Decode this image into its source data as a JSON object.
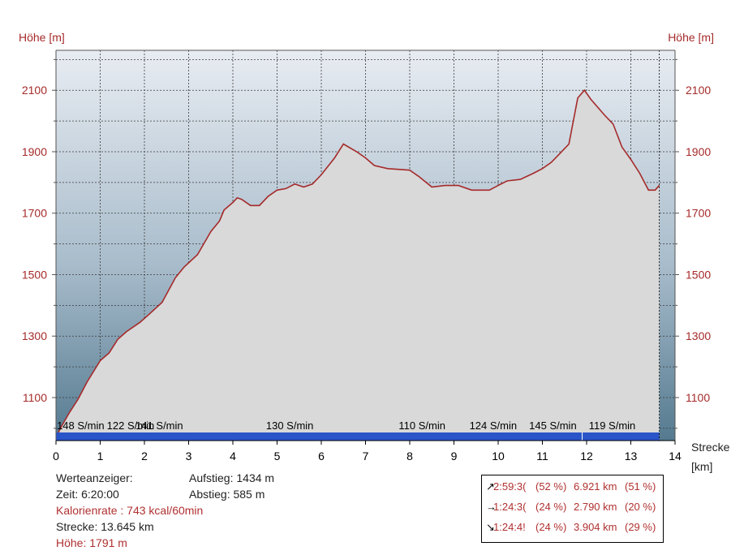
{
  "chart_data": {
    "type": "area",
    "ylabel_left": "Höhe [m]",
    "ylabel_right": "Höhe [m]",
    "xlabel": "Strecke",
    "xunit": "[km]",
    "xlim": [
      0,
      14
    ],
    "ylim": [
      960,
      2230
    ],
    "xticks": [
      0,
      1,
      2,
      3,
      4,
      5,
      6,
      7,
      8,
      9,
      10,
      11,
      12,
      13,
      14
    ],
    "yticks": [
      1100,
      1300,
      1500,
      1700,
      1900,
      2100
    ],
    "grid": true,
    "colors": {
      "line": "#a52a2a",
      "fill": "#d9d9d9",
      "bg_top": "#e6eaf0",
      "bg_bottom": "#5a7d92",
      "bar": "#2a55c8",
      "text_axis": "#a52a2a"
    },
    "series": [
      {
        "x": [
          0,
          0.1,
          0.3,
          0.5,
          0.7,
          1.0,
          1.2,
          1.4,
          1.6,
          1.9,
          2.1,
          2.4,
          2.7,
          2.9,
          3.2,
          3.5,
          3.7,
          3.8,
          4.0,
          4.1,
          4.2,
          4.4,
          4.6,
          4.8,
          5.0,
          5.2,
          5.4,
          5.6,
          5.8,
          6.0,
          6.3,
          6.5,
          6.8,
          7.0,
          7.2,
          7.5,
          8.0,
          8.2,
          8.5,
          8.8,
          9.1,
          9.4,
          9.8,
          10.0,
          10.2,
          10.5,
          10.8,
          11.0,
          11.2,
          11.4,
          11.6,
          11.8,
          11.95,
          12.1,
          12.4,
          12.6,
          12.8,
          13.0,
          13.2,
          13.4,
          13.55,
          13.645
        ],
        "y": [
          970,
          1000,
          1050,
          1095,
          1150,
          1220,
          1245,
          1290,
          1315,
          1345,
          1370,
          1410,
          1490,
          1525,
          1565,
          1640,
          1675,
          1710,
          1735,
          1750,
          1745,
          1725,
          1725,
          1755,
          1775,
          1780,
          1795,
          1785,
          1795,
          1825,
          1880,
          1925,
          1900,
          1880,
          1855,
          1845,
          1840,
          1820,
          1785,
          1790,
          1790,
          1775,
          1775,
          1790,
          1805,
          1810,
          1830,
          1845,
          1865,
          1895,
          1925,
          2075,
          2100,
          2070,
          2020,
          1990,
          1915,
          1875,
          1830,
          1775,
          1775,
          1791
        ]
      }
    ],
    "cadence_labels": [
      {
        "x": 0.02,
        "label": "148 S/min"
      },
      {
        "x": 1.15,
        "label": "122 S/min"
      },
      {
        "x": 1.8,
        "label": "141 S/min"
      },
      {
        "x": 4.75,
        "label": "130 S/min"
      },
      {
        "x": 7.75,
        "label": "110 S/min"
      },
      {
        "x": 9.35,
        "label": "124 S/min"
      },
      {
        "x": 10.7,
        "label": "145 S/min"
      },
      {
        "x": 12.05,
        "label": "119 S/min"
      }
    ],
    "marker_x": 13.645
  },
  "info": {
    "werteanzeiger": "Werteanzeiger:",
    "zeit": "Zeit: 6:20:00",
    "kalorienrate": "Kalorienrate : 743 kcal/60min",
    "strecke": "Strecke: 13.645 km",
    "hoehe": "Höhe: 1791 m",
    "aufstieg": "Aufstieg: 1434 m",
    "abstieg": "Abstieg: 585 m"
  },
  "summary": [
    {
      "arrow": "↗",
      "time": "2:59:3(",
      "pct_time": "(52 %)",
      "dist": "6.921 km",
      "pct_dist": "(51 %)"
    },
    {
      "arrow": "→",
      "time": "1:24:3(",
      "pct_time": "(24 %)",
      "dist": "2.790 km",
      "pct_dist": "(20 %)"
    },
    {
      "arrow": "↘",
      "time": "1:24:4!",
      "pct_time": "(24 %)",
      "dist": "3.904 km",
      "pct_dist": "(29 %)"
    }
  ]
}
